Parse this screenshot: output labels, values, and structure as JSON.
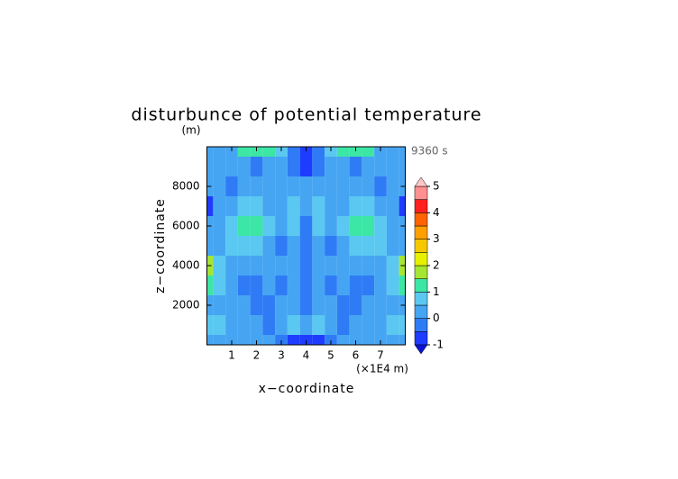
{
  "chart_data": {
    "type": "contour",
    "title": "disturbunce of potential temperature",
    "y_unit": "(m)",
    "x_unit": "(×1E4 m)",
    "time_label": "9360 s",
    "xlabel": "x−coordinate",
    "ylabel": "z−coordinate",
    "xlim": [
      0,
      8
    ],
    "ylim": [
      0,
      10000
    ],
    "xticks": [
      1,
      2,
      3,
      4,
      5,
      6,
      7
    ],
    "yticks": [
      2000,
      4000,
      6000,
      8000
    ],
    "x": [
      0,
      0.5,
      1,
      1.5,
      2,
      2.5,
      3,
      3.5,
      4,
      4.5,
      5,
      5.5,
      6,
      6.5,
      7,
      7.5,
      8
    ],
    "y": [
      0,
      1000,
      2000,
      3000,
      4000,
      5000,
      6000,
      7000,
      8000,
      9000,
      10000
    ],
    "z": [
      [
        0.3,
        0.3,
        0.3,
        0.3,
        0.3,
        0.3,
        -0.2,
        -0.8,
        -0.8,
        -0.8,
        -0.2,
        0.3,
        0.3,
        0.3,
        0.3,
        0.3,
        0.3
      ],
      [
        0.8,
        0.8,
        0.3,
        0.3,
        0.3,
        -0.2,
        0.3,
        0.8,
        0.3,
        0.8,
        0.3,
        -0.2,
        0.3,
        0.3,
        0.3,
        0.8,
        0.8
      ],
      [
        0.3,
        0.3,
        0.3,
        0.3,
        -0.2,
        -0.2,
        0.3,
        0.3,
        -0.2,
        0.3,
        0.3,
        -0.2,
        -0.2,
        0.3,
        0.3,
        0.3,
        0.3
      ],
      [
        1.2,
        0.8,
        0.3,
        -0.2,
        -0.2,
        0.3,
        -0.2,
        0.3,
        -0.2,
        0.3,
        -0.2,
        0.3,
        -0.2,
        -0.2,
        0.3,
        0.8,
        1.2
      ],
      [
        1.7,
        0.8,
        0.3,
        0.3,
        0.3,
        0.3,
        0.3,
        0.3,
        -0.2,
        0.3,
        0.3,
        0.3,
        0.3,
        0.3,
        0.3,
        0.8,
        1.7
      ],
      [
        0.3,
        0.3,
        0.8,
        0.8,
        0.8,
        0.3,
        -0.2,
        0.3,
        -0.2,
        0.3,
        -0.2,
        0.3,
        0.8,
        0.8,
        0.8,
        0.3,
        0.3
      ],
      [
        0.3,
        0.3,
        0.8,
        1.2,
        1.2,
        0.8,
        0.3,
        0.8,
        -0.2,
        0.8,
        0.3,
        0.8,
        1.2,
        1.2,
        0.8,
        0.3,
        0.3
      ],
      [
        -0.8,
        0.3,
        0.3,
        0.8,
        0.8,
        0.3,
        0.3,
        0.8,
        0.3,
        0.8,
        0.3,
        0.3,
        0.8,
        0.8,
        0.3,
        0.3,
        -0.8
      ],
      [
        0.3,
        0.3,
        -0.2,
        0.3,
        0.3,
        0.3,
        0.3,
        0.3,
        0.3,
        0.3,
        0.3,
        0.3,
        0.3,
        0.3,
        -0.2,
        0.3,
        0.3
      ],
      [
        0.3,
        0.3,
        0.3,
        0.3,
        -0.2,
        0.3,
        0.3,
        -0.2,
        -0.8,
        -0.2,
        0.3,
        0.3,
        -0.2,
        0.3,
        0.3,
        0.3,
        0.3
      ],
      [
        0.3,
        0.3,
        0.3,
        1.2,
        1.2,
        1.2,
        0.8,
        -0.2,
        -0.8,
        -0.2,
        0.8,
        1.2,
        1.2,
        1.2,
        0.3,
        0.3,
        0.3
      ]
    ],
    "colorbar": {
      "levels": [
        -1,
        -0.5,
        0,
        0.5,
        1,
        1.5,
        2,
        2.5,
        3,
        3.5,
        4,
        4.5,
        5
      ],
      "colors": [
        "#1e3cff",
        "#2f7bf5",
        "#46a5f2",
        "#5ac8f0",
        "#3ce6a5",
        "#a5e632",
        "#e6f000",
        "#f5c800",
        "#ffa000",
        "#ff6400",
        "#ff2020",
        "#ff9090"
      ],
      "under_color": "#0a14d2",
      "over_color": "#ffc8c8",
      "ticks": [
        -1,
        0,
        1,
        2,
        3,
        4,
        5
      ]
    }
  }
}
